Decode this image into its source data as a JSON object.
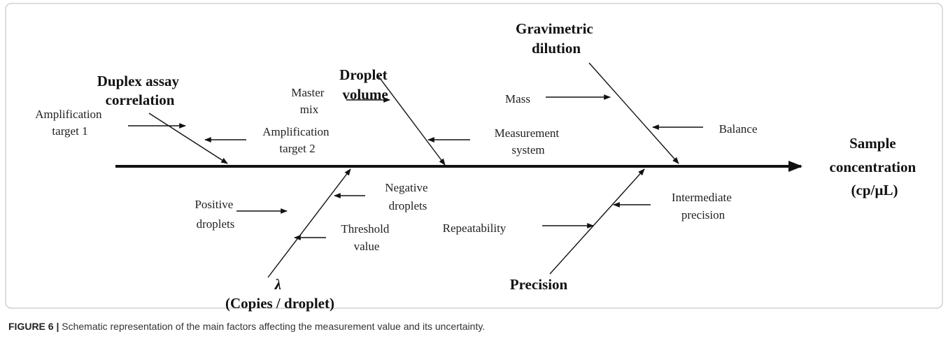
{
  "effect": {
    "lines": [
      "Sample",
      "concentration",
      "(cp/µL)"
    ]
  },
  "categories": [
    {
      "label": [
        "Duplex assay",
        "correlation"
      ],
      "causes": [
        {
          "lines": [
            "Amplification",
            "target 1"
          ]
        },
        {
          "lines": [
            "Amplification",
            "target 2"
          ]
        }
      ]
    },
    {
      "label": [
        "Droplet",
        "volume"
      ],
      "causes": [
        {
          "lines": [
            "Master",
            "mix"
          ]
        },
        {
          "lines": [
            "Measurement",
            "system"
          ]
        }
      ]
    },
    {
      "label": [
        "Gravimetric",
        "dilution"
      ],
      "causes": [
        {
          "lines": [
            "Mass"
          ]
        },
        {
          "lines": [
            "Balance"
          ]
        }
      ]
    },
    {
      "label": [
        "λ",
        "(Copies / droplet)"
      ],
      "causes": [
        {
          "lines": [
            "Positive",
            "droplets"
          ]
        },
        {
          "lines": [
            "Negative",
            "droplets"
          ]
        },
        {
          "lines": [
            "Threshold",
            "value"
          ]
        }
      ]
    },
    {
      "label": [
        "Precision"
      ],
      "causes": [
        {
          "lines": [
            "Repeatability"
          ]
        },
        {
          "lines": [
            "Intermediate",
            "precision"
          ]
        }
      ]
    }
  ],
  "caption": {
    "label": "FIGURE 6 |",
    "text": "Schematic representation of the main factors affecting the measurement value and its uncertainty."
  }
}
